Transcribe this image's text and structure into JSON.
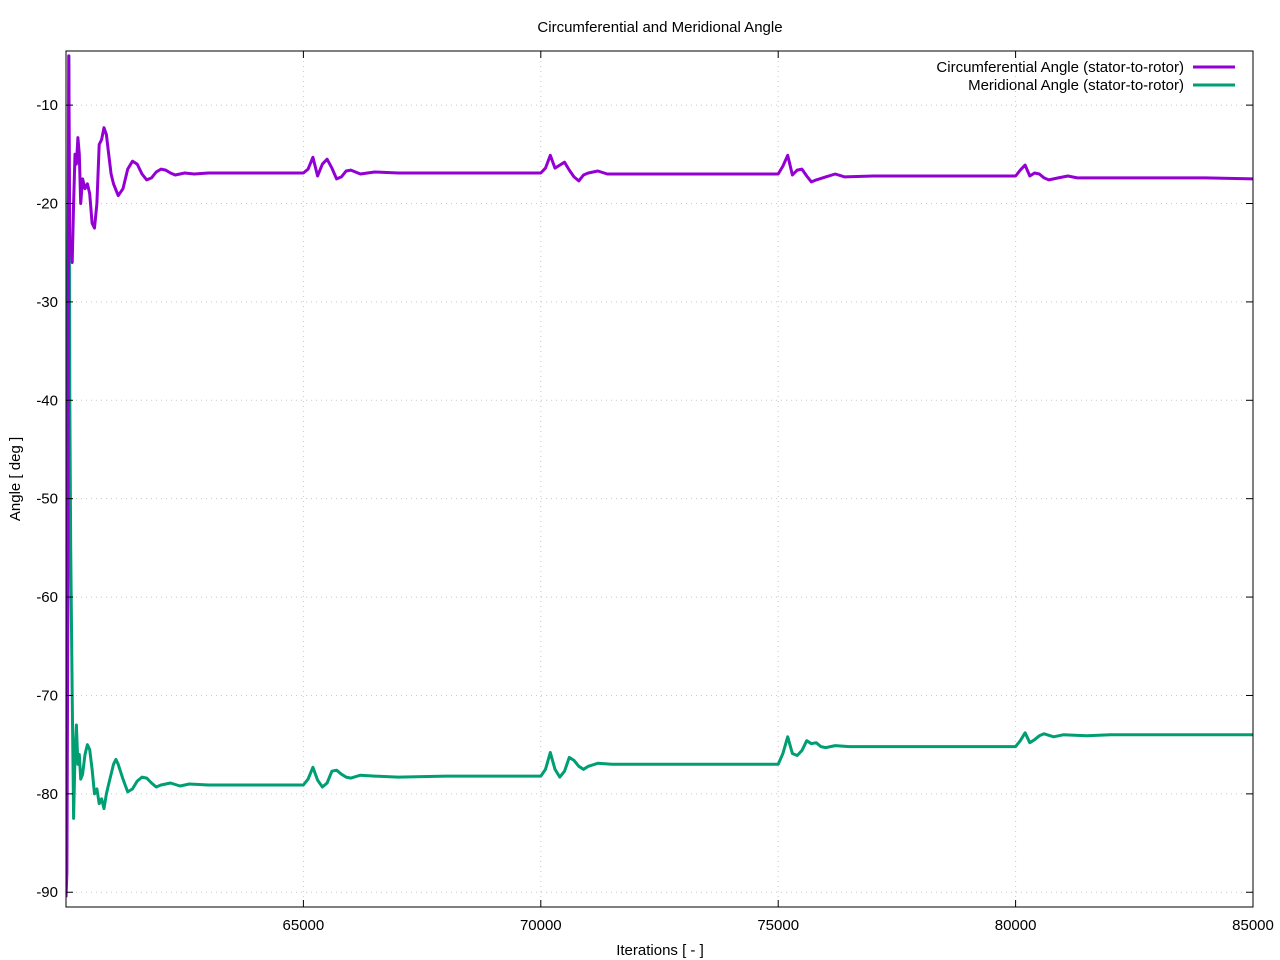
{
  "chart_data": {
    "type": "line",
    "title": "Circumferential and Meridional Angle",
    "xlabel": "Iterations [ - ]",
    "ylabel": "Angle [ deg ]",
    "xlim": [
      60000,
      85000
    ],
    "ylim": [
      -91.5,
      -4.5
    ],
    "xticks": [
      65000,
      70000,
      75000,
      80000,
      85000
    ],
    "yticks": [
      -10,
      -20,
      -30,
      -40,
      -50,
      -60,
      -70,
      -80,
      -90
    ],
    "grid": true,
    "legend_position": "top-right",
    "series": [
      {
        "name": "Circumferential Angle (stator-to-rotor)",
        "color": "#9400d3",
        "points": [
          [
            60000,
            -90.5
          ],
          [
            60020,
            -88
          ],
          [
            60040,
            -60
          ],
          [
            60060,
            -5
          ],
          [
            60080,
            -25
          ],
          [
            60100,
            -24
          ],
          [
            60130,
            -26
          ],
          [
            60160,
            -20
          ],
          [
            60190,
            -15
          ],
          [
            60220,
            -16
          ],
          [
            60250,
            -13.3
          ],
          [
            60280,
            -15
          ],
          [
            60310,
            -20
          ],
          [
            60350,
            -17.5
          ],
          [
            60400,
            -18.5
          ],
          [
            60450,
            -18
          ],
          [
            60500,
            -19
          ],
          [
            60550,
            -22
          ],
          [
            60600,
            -22.5
          ],
          [
            60650,
            -20
          ],
          [
            60700,
            -14
          ],
          [
            60750,
            -13.5
          ],
          [
            60800,
            -12.3
          ],
          [
            60850,
            -13
          ],
          [
            60900,
            -15
          ],
          [
            60950,
            -17
          ],
          [
            61000,
            -18
          ],
          [
            61100,
            -19.2
          ],
          [
            61200,
            -18.5
          ],
          [
            61300,
            -16.5
          ],
          [
            61400,
            -15.7
          ],
          [
            61500,
            -16
          ],
          [
            61600,
            -17
          ],
          [
            61700,
            -17.6
          ],
          [
            61800,
            -17.4
          ],
          [
            61900,
            -16.8
          ],
          [
            62000,
            -16.5
          ],
          [
            62100,
            -16.6
          ],
          [
            62200,
            -16.9
          ],
          [
            62300,
            -17.1
          ],
          [
            62400,
            -17.0
          ],
          [
            62500,
            -16.9
          ],
          [
            62700,
            -17.0
          ],
          [
            63000,
            -16.9
          ],
          [
            64000,
            -16.9
          ],
          [
            65000,
            -16.9
          ],
          [
            65100,
            -16.5
          ],
          [
            65200,
            -15.3
          ],
          [
            65300,
            -17.2
          ],
          [
            65400,
            -16.0
          ],
          [
            65500,
            -15.5
          ],
          [
            65600,
            -16.4
          ],
          [
            65700,
            -17.5
          ],
          [
            65800,
            -17.3
          ],
          [
            65900,
            -16.7
          ],
          [
            66000,
            -16.6
          ],
          [
            66200,
            -17.0
          ],
          [
            66500,
            -16.8
          ],
          [
            67000,
            -16.9
          ],
          [
            68000,
            -16.9
          ],
          [
            69000,
            -16.9
          ],
          [
            70000,
            -16.9
          ],
          [
            70100,
            -16.4
          ],
          [
            70200,
            -15.1
          ],
          [
            70300,
            -16.4
          ],
          [
            70400,
            -16.1
          ],
          [
            70500,
            -15.8
          ],
          [
            70600,
            -16.6
          ],
          [
            70700,
            -17.3
          ],
          [
            70800,
            -17.7
          ],
          [
            70900,
            -17.1
          ],
          [
            71000,
            -16.9
          ],
          [
            71200,
            -16.7
          ],
          [
            71400,
            -17.0
          ],
          [
            72000,
            -17.0
          ],
          [
            73000,
            -17.0
          ],
          [
            74000,
            -17.0
          ],
          [
            75000,
            -17.0
          ],
          [
            75100,
            -16.2
          ],
          [
            75200,
            -15.1
          ],
          [
            75300,
            -17.1
          ],
          [
            75400,
            -16.6
          ],
          [
            75500,
            -16.5
          ],
          [
            75600,
            -17.2
          ],
          [
            75700,
            -17.8
          ],
          [
            75800,
            -17.6
          ],
          [
            76000,
            -17.3
          ],
          [
            76200,
            -17.0
          ],
          [
            76400,
            -17.3
          ],
          [
            77000,
            -17.2
          ],
          [
            78000,
            -17.2
          ],
          [
            79000,
            -17.2
          ],
          [
            80000,
            -17.2
          ],
          [
            80100,
            -16.6
          ],
          [
            80200,
            -16.1
          ],
          [
            80300,
            -17.2
          ],
          [
            80400,
            -16.9
          ],
          [
            80500,
            -17.0
          ],
          [
            80600,
            -17.4
          ],
          [
            80700,
            -17.6
          ],
          [
            80900,
            -17.4
          ],
          [
            81100,
            -17.2
          ],
          [
            81300,
            -17.4
          ],
          [
            82000,
            -17.4
          ],
          [
            83000,
            -17.4
          ],
          [
            84000,
            -17.4
          ],
          [
            85000,
            -17.5
          ]
        ]
      },
      {
        "name": "Meridional Angle (stator-to-rotor)",
        "color": "#009e73",
        "points": [
          [
            60000,
            -87
          ],
          [
            60020,
            -75
          ],
          [
            60040,
            -30
          ],
          [
            60060,
            -5
          ],
          [
            60080,
            -40
          ],
          [
            60100,
            -55
          ],
          [
            60130,
            -70
          ],
          [
            60160,
            -82.5
          ],
          [
            60190,
            -76
          ],
          [
            60220,
            -73
          ],
          [
            60250,
            -77
          ],
          [
            60280,
            -76
          ],
          [
            60310,
            -78.5
          ],
          [
            60350,
            -78
          ],
          [
            60400,
            -76
          ],
          [
            60450,
            -75
          ],
          [
            60500,
            -75.5
          ],
          [
            60550,
            -77.5
          ],
          [
            60600,
            -80
          ],
          [
            60650,
            -79.5
          ],
          [
            60700,
            -81
          ],
          [
            60750,
            -80.5
          ],
          [
            60800,
            -81.5
          ],
          [
            60850,
            -80
          ],
          [
            60900,
            -79
          ],
          [
            60950,
            -78
          ],
          [
            61000,
            -77
          ],
          [
            61050,
            -76.5
          ],
          [
            61100,
            -77
          ],
          [
            61200,
            -78.5
          ],
          [
            61300,
            -79.8
          ],
          [
            61400,
            -79.5
          ],
          [
            61500,
            -78.7
          ],
          [
            61600,
            -78.3
          ],
          [
            61700,
            -78.4
          ],
          [
            61800,
            -78.9
          ],
          [
            61900,
            -79.3
          ],
          [
            62000,
            -79.1
          ],
          [
            62200,
            -78.9
          ],
          [
            62400,
            -79.2
          ],
          [
            62600,
            -79.0
          ],
          [
            63000,
            -79.1
          ],
          [
            64000,
            -79.1
          ],
          [
            65000,
            -79.1
          ],
          [
            65100,
            -78.5
          ],
          [
            65200,
            -77.3
          ],
          [
            65300,
            -78.6
          ],
          [
            65400,
            -79.3
          ],
          [
            65500,
            -78.9
          ],
          [
            65600,
            -77.7
          ],
          [
            65700,
            -77.6
          ],
          [
            65800,
            -78.0
          ],
          [
            65900,
            -78.3
          ],
          [
            66000,
            -78.4
          ],
          [
            66200,
            -78.1
          ],
          [
            66500,
            -78.2
          ],
          [
            67000,
            -78.3
          ],
          [
            68000,
            -78.2
          ],
          [
            69000,
            -78.2
          ],
          [
            70000,
            -78.2
          ],
          [
            70100,
            -77.5
          ],
          [
            70200,
            -75.8
          ],
          [
            70300,
            -77.5
          ],
          [
            70400,
            -78.3
          ],
          [
            70500,
            -77.7
          ],
          [
            70600,
            -76.3
          ],
          [
            70700,
            -76.6
          ],
          [
            70800,
            -77.2
          ],
          [
            70900,
            -77.5
          ],
          [
            71000,
            -77.2
          ],
          [
            71200,
            -76.9
          ],
          [
            71500,
            -77.0
          ],
          [
            72000,
            -77.0
          ],
          [
            73000,
            -77.0
          ],
          [
            74000,
            -77.0
          ],
          [
            75000,
            -77.0
          ],
          [
            75100,
            -75.9
          ],
          [
            75200,
            -74.2
          ],
          [
            75300,
            -75.9
          ],
          [
            75400,
            -76.1
          ],
          [
            75500,
            -75.6
          ],
          [
            75600,
            -74.6
          ],
          [
            75700,
            -74.9
          ],
          [
            75800,
            -74.8
          ],
          [
            75900,
            -75.2
          ],
          [
            76000,
            -75.3
          ],
          [
            76200,
            -75.1
          ],
          [
            76500,
            -75.2
          ],
          [
            77000,
            -75.2
          ],
          [
            78000,
            -75.2
          ],
          [
            79000,
            -75.2
          ],
          [
            80000,
            -75.2
          ],
          [
            80100,
            -74.6
          ],
          [
            80200,
            -73.8
          ],
          [
            80300,
            -74.8
          ],
          [
            80400,
            -74.5
          ],
          [
            80500,
            -74.1
          ],
          [
            80600,
            -73.9
          ],
          [
            80800,
            -74.2
          ],
          [
            81000,
            -74.0
          ],
          [
            81500,
            -74.1
          ],
          [
            82000,
            -74.0
          ],
          [
            83000,
            -74.0
          ],
          [
            84000,
            -74.0
          ],
          [
            85000,
            -74.0
          ]
        ]
      }
    ]
  }
}
